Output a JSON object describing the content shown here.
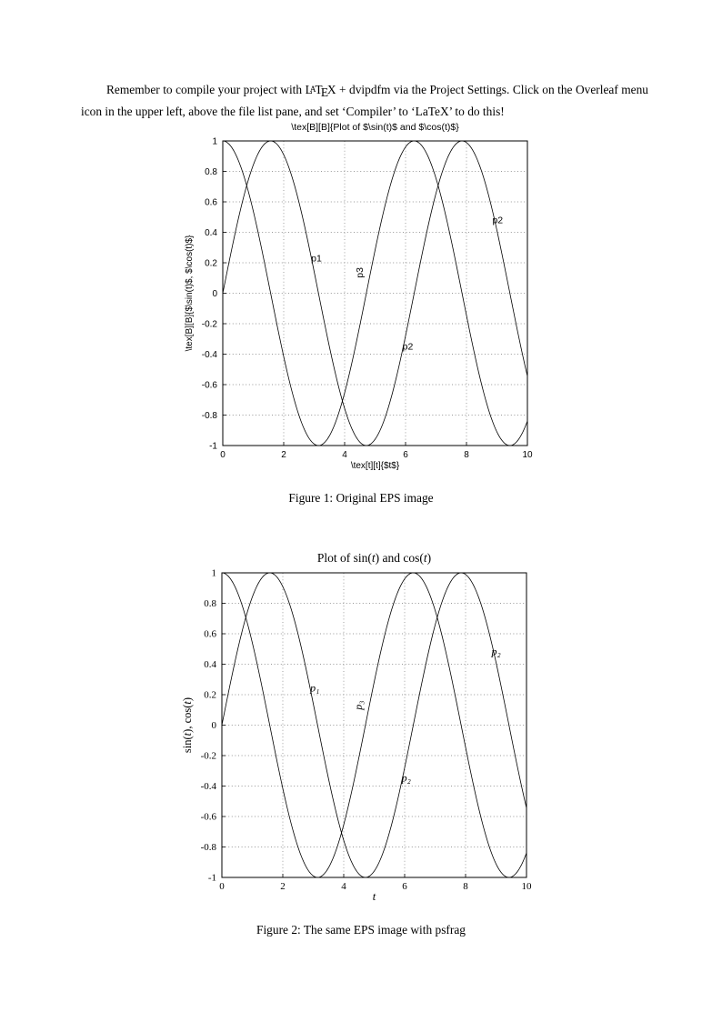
{
  "paragraph": {
    "part1": "Remember to compile your project with ",
    "latex_logo": [
      "L",
      "A",
      "T",
      "E",
      "X"
    ],
    "part2": " + dvipdfm via the Project Settings. Click on the Overleaf menu icon in the upper left, above the file list pane, and set ‘Compiler’ to ‘LaTeX’ to do this!"
  },
  "figures": [
    {
      "caption": "Figure 1: Original EPS image"
    },
    {
      "caption": "Figure 2: The same EPS image with psfrag"
    }
  ],
  "chart_data": [
    {
      "type": "line",
      "font_style": "sans",
      "title": "\\tex[B][B]{Plot of $\\sin(t)$ and $\\cos(t)$}",
      "xlabel": "\\tex[t][t]{$t$}",
      "ylabel": "\\tex[B][B]{$\\sin(t)$, $\\cos(t)$}",
      "x_range": [
        0,
        10
      ],
      "ylim": [
        -1,
        1
      ],
      "xticks": [
        0,
        2,
        4,
        6,
        8,
        10
      ],
      "yticks": [
        -1,
        -0.8,
        -0.6,
        -0.4,
        -0.2,
        0,
        0.2,
        0.4,
        0.6,
        0.8,
        1
      ],
      "grid": "dotted",
      "legend": "none",
      "series": [
        {
          "name": "sin(t)",
          "fn": "sin"
        },
        {
          "name": "cos(t)",
          "fn": "cos"
        }
      ],
      "annotations": [
        {
          "text": "p1",
          "x": 2.9,
          "y": 0.21,
          "rotate": 0
        },
        {
          "text": "p3",
          "x": 4.6,
          "y": 0.1,
          "rotate": -90
        },
        {
          "text": "p2",
          "x": 8.85,
          "y": 0.46,
          "rotate": 0
        },
        {
          "text": "p2",
          "x": 5.9,
          "y": -0.37,
          "rotate": 0
        }
      ]
    },
    {
      "type": "line",
      "font_style": "serif",
      "title": [
        {
          "text": "Plot of sin("
        },
        {
          "text": "t",
          "italic": true
        },
        {
          "text": ") and cos("
        },
        {
          "text": "t",
          "italic": true
        },
        {
          "text": ")"
        }
      ],
      "xlabel": [
        {
          "text": "t",
          "italic": true
        }
      ],
      "ylabel": [
        {
          "text": "sin("
        },
        {
          "text": "t",
          "italic": true
        },
        {
          "text": "), cos("
        },
        {
          "text": "t",
          "italic": true
        },
        {
          "text": ")"
        }
      ],
      "x_range": [
        0,
        10
      ],
      "ylim": [
        -1,
        1
      ],
      "xticks": [
        0,
        2,
        4,
        6,
        8,
        10
      ],
      "yticks": [
        -1,
        -0.8,
        -0.6,
        -0.4,
        -0.2,
        0,
        0.2,
        0.4,
        0.6,
        0.8,
        1
      ],
      "grid": "dotted",
      "legend": "none",
      "series": [
        {
          "name": "sin(t)",
          "fn": "sin"
        },
        {
          "name": "cos(t)",
          "fn": "cos"
        }
      ],
      "annotations": [
        {
          "text": "p₁",
          "italic": true,
          "x": 2.9,
          "y": 0.22,
          "rotate": 0
        },
        {
          "text": "p₃",
          "italic": true,
          "x": 4.6,
          "y": 0.1,
          "rotate": -90
        },
        {
          "text": "p₂",
          "italic": true,
          "x": 8.85,
          "y": 0.46,
          "rotate": 0
        },
        {
          "text": "p₂",
          "italic": true,
          "x": 5.9,
          "y": -0.37,
          "rotate": 0
        }
      ]
    }
  ]
}
